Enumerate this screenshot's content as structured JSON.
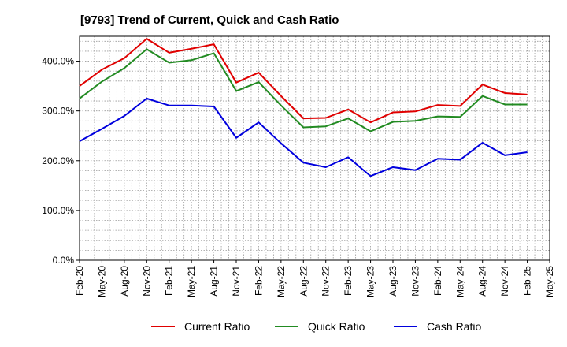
{
  "chart_data": {
    "type": "line",
    "title": "[9793]  Trend of Current, Quick and Cash Ratio",
    "xlabel": "",
    "ylabel": "",
    "ylim": [
      0,
      450
    ],
    "y_ticks": [
      0,
      100,
      200,
      300,
      400
    ],
    "y_tick_labels": [
      "0.0%",
      "100.0%",
      "200.0%",
      "300.0%",
      "400.0%"
    ],
    "grid": true,
    "legend_position": "bottom",
    "x": [
      "Feb-20",
      "May-20",
      "Aug-20",
      "Nov-20",
      "Feb-21",
      "May-21",
      "Aug-21",
      "Nov-21",
      "Feb-22",
      "May-22",
      "Aug-22",
      "Nov-22",
      "Feb-23",
      "May-23",
      "Aug-23",
      "Nov-23",
      "Feb-24",
      "May-24",
      "Aug-24",
      "Nov-24",
      "Feb-25"
    ],
    "x_tick_labels": [
      "Feb-20",
      "May-20",
      "Aug-20",
      "Nov-20",
      "Feb-21",
      "May-21",
      "Aug-21",
      "Nov-21",
      "Feb-22",
      "May-22",
      "Aug-22",
      "Nov-22",
      "Feb-23",
      "May-23",
      "Aug-23",
      "Nov-23",
      "Feb-24",
      "May-24",
      "Aug-24",
      "Nov-24",
      "Feb-25",
      "May-25"
    ],
    "series": [
      {
        "name": "Current Ratio",
        "color": "#e00000",
        "values": [
          350,
          383,
          406,
          445,
          417,
          425,
          434,
          357,
          377,
          330,
          285,
          286,
          303,
          277,
          297,
          299,
          312,
          310,
          353,
          336,
          333
        ]
      },
      {
        "name": "Quick Ratio",
        "color": "#228b22",
        "values": [
          325,
          359,
          386,
          424,
          397,
          402,
          416,
          340,
          358,
          311,
          267,
          269,
          285,
          259,
          278,
          280,
          289,
          288,
          330,
          313,
          313
        ]
      },
      {
        "name": "Cash Ratio",
        "color": "#0000dd",
        "values": [
          239,
          264,
          290,
          325,
          311,
          311,
          309,
          246,
          277,
          235,
          196,
          187,
          207,
          169,
          187,
          181,
          204,
          202,
          236,
          211,
          217
        ]
      }
    ]
  }
}
